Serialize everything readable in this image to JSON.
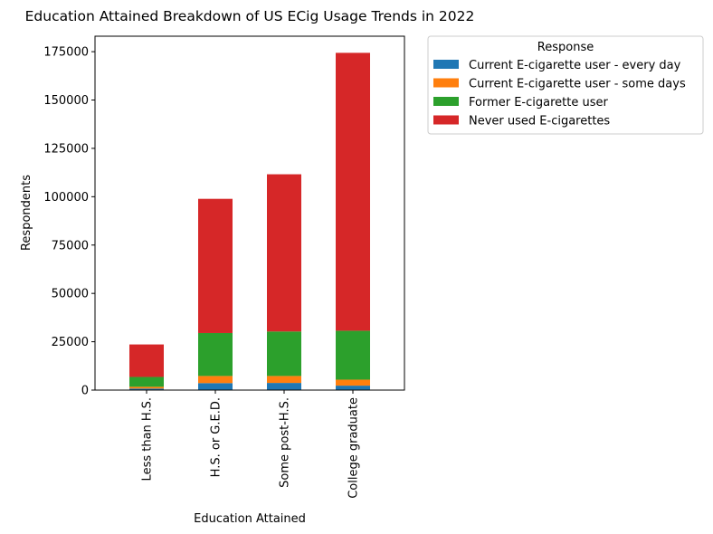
{
  "chart_data": {
    "type": "bar",
    "stacked": true,
    "title": "Education Attained Breakdown of US ECig Usage Trends in 2022",
    "xlabel": "Education Attained",
    "ylabel": "Respondents",
    "ylim": [
      0,
      183000
    ],
    "yticks": [
      0,
      25000,
      50000,
      75000,
      100000,
      125000,
      150000,
      175000
    ],
    "categories": [
      "Less than H.S.",
      "H.S. or G.E.D.",
      "Some post-H.S.",
      "College graduate"
    ],
    "legend": {
      "title": "Response",
      "placement": "outside-top-right"
    },
    "series": [
      {
        "name": "Current E-cigarette user - every day",
        "color": "#1f77b4",
        "values": [
          800,
          3600,
          3700,
          2300
        ]
      },
      {
        "name": "Current E-cigarette user - some days",
        "color": "#ff7f0e",
        "values": [
          900,
          3700,
          3600,
          3100
        ]
      },
      {
        "name": "Former E-cigarette user",
        "color": "#2ca02c",
        "values": [
          5100,
          22200,
          23000,
          25300
        ]
      },
      {
        "name": "Never used E-cigarettes",
        "color": "#d62728",
        "values": [
          16800,
          69400,
          81300,
          143700
        ]
      }
    ]
  }
}
